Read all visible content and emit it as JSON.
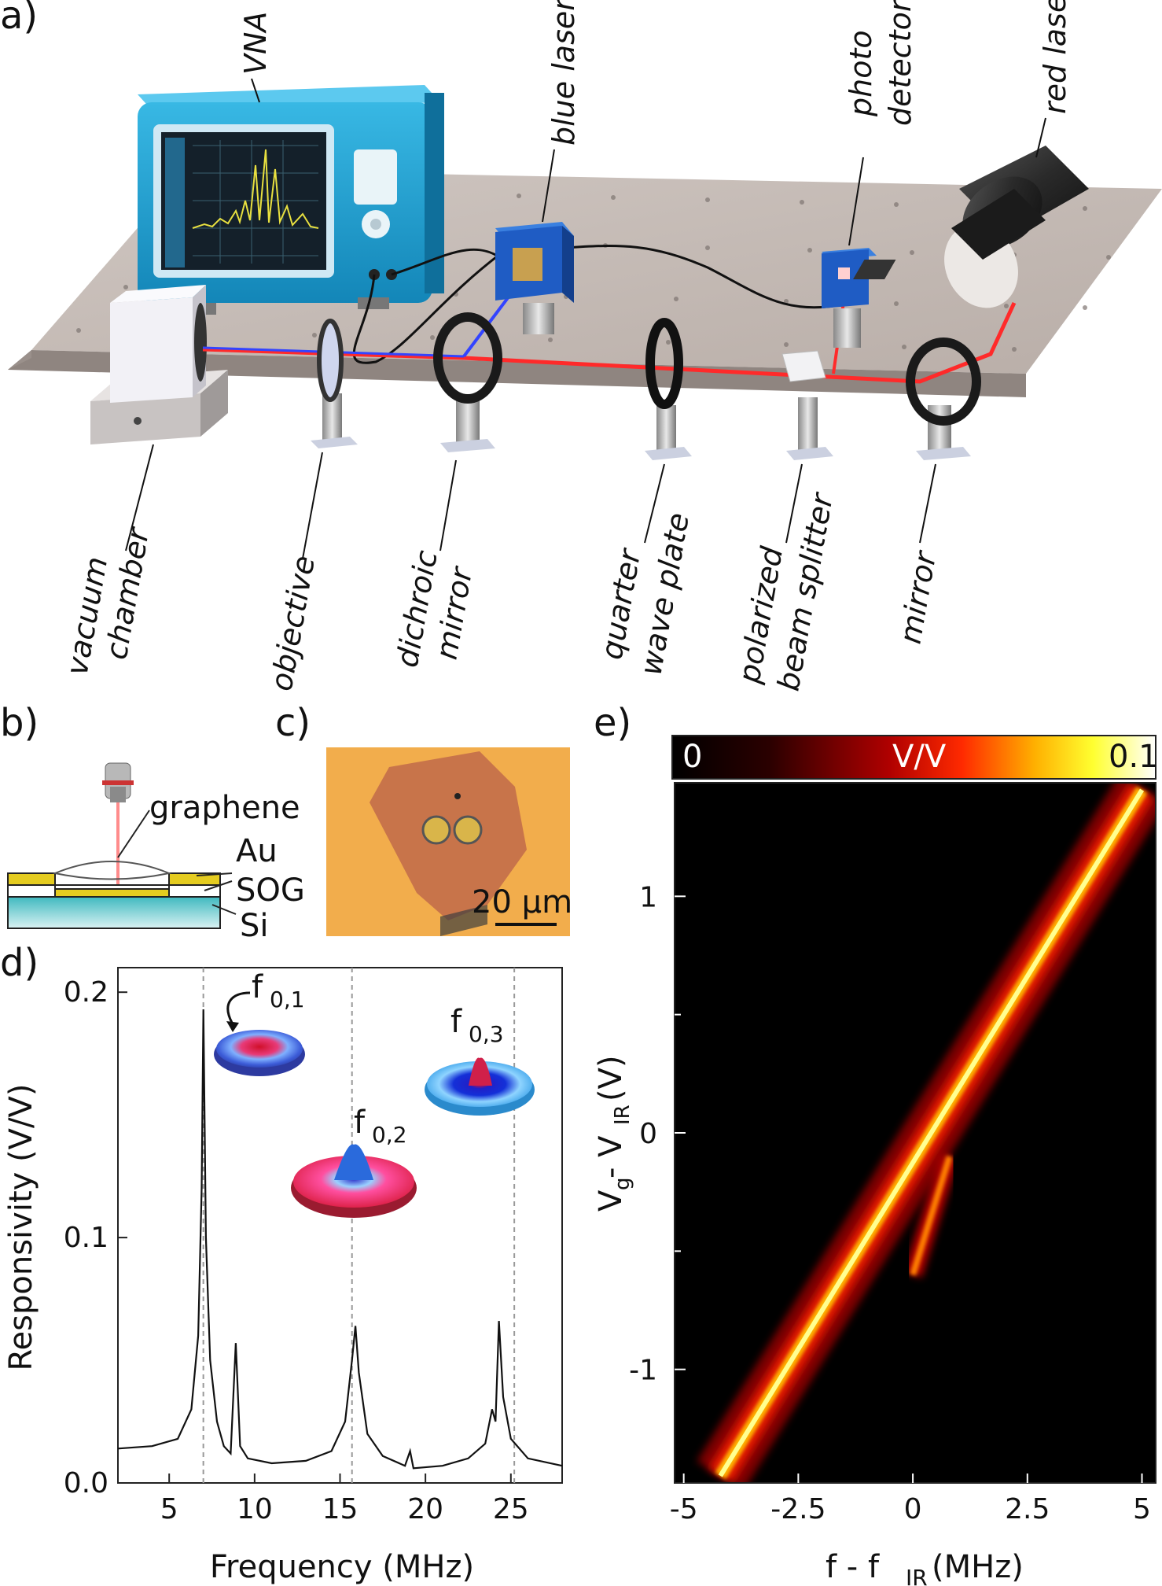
{
  "panels": {
    "a": "a)",
    "b": "b)",
    "c": "c)",
    "d": "d)",
    "e": "e)"
  },
  "setup_labels": {
    "vna": "VNA",
    "blue_laser": "blue laser",
    "photo": "photo",
    "detector": "detector",
    "red_laser": "red laser",
    "vacuum": "vacuum",
    "chamber": "chamber",
    "objective": "objective",
    "dichroic": "dichroic",
    "mirror_a": "mirror",
    "quarter": "quarter",
    "wave_plate": "wave plate",
    "polarized": "polarized",
    "beam_splitter": "beam splitter",
    "mirror": "mirror"
  },
  "device_labels": {
    "graphene": "graphene",
    "au": "Au",
    "sog": "SOG",
    "si": "Si"
  },
  "micrograph": {
    "scale_bar": "20 µm"
  },
  "colors": {
    "table": "#bdb3ad",
    "vna_body": "#1ba1cf",
    "red_beam": "#ff2a2a",
    "blue_beam": "#3344ff",
    "laser_box": "#1f5cc4",
    "flake_bg": "#f2ad4c",
    "flake": "#c8744a"
  },
  "chart_data": [
    {
      "type": "line",
      "id": "d",
      "xlabel": "Frequency (MHz)",
      "ylabel": "Responsivity (V/V)",
      "xlim": [
        2,
        28
      ],
      "ylim": [
        0,
        0.21
      ],
      "xticks": [
        5,
        10,
        15,
        20,
        25
      ],
      "yticks": [
        0.0,
        0.1,
        0.2
      ],
      "ytick_labels": [
        "0.0",
        "0.1",
        "0.2"
      ],
      "mode_lines": [
        7.0,
        15.7,
        25.2
      ],
      "background": [
        [
          2,
          0.014
        ],
        [
          4,
          0.015
        ],
        [
          5.5,
          0.018
        ],
        [
          6.3,
          0.03
        ],
        [
          6.7,
          0.06
        ],
        [
          6.9,
          0.12
        ],
        [
          7.0,
          0.193
        ],
        [
          7.15,
          0.1
        ],
        [
          7.4,
          0.05
        ],
        [
          7.8,
          0.025
        ],
        [
          8.2,
          0.015
        ],
        [
          8.6,
          0.012
        ],
        [
          8.9,
          0.057
        ],
        [
          9.15,
          0.015
        ],
        [
          9.6,
          0.01
        ],
        [
          11,
          0.008
        ],
        [
          13,
          0.009
        ],
        [
          14.5,
          0.013
        ],
        [
          15.3,
          0.025
        ],
        [
          15.7,
          0.05
        ],
        [
          15.9,
          0.064
        ],
        [
          16.1,
          0.045
        ],
        [
          16.6,
          0.02
        ],
        [
          17.5,
          0.011
        ],
        [
          18.8,
          0.007
        ],
        [
          19.1,
          0.013
        ],
        [
          19.3,
          0.006
        ],
        [
          21,
          0.007
        ],
        [
          22.5,
          0.01
        ],
        [
          23.5,
          0.016
        ],
        [
          23.9,
          0.03
        ],
        [
          24.1,
          0.025
        ],
        [
          24.3,
          0.066
        ],
        [
          24.55,
          0.035
        ],
        [
          25,
          0.018
        ],
        [
          26,
          0.01
        ],
        [
          28,
          0.007
        ]
      ],
      "mode_labels": [
        {
          "base": "f",
          "sub": "0,1"
        },
        {
          "base": "f",
          "sub": "0,2"
        },
        {
          "base": "f",
          "sub": "0,3"
        }
      ]
    },
    {
      "type": "heatmap",
      "id": "e",
      "xlabel": "f - f",
      "xlabel_sub": "IR",
      "xlabel_unit": " (MHz)",
      "ylabel": "V",
      "ylabel_parts": [
        "V",
        "g",
        " - V",
        "IR",
        " (V)"
      ],
      "xlim": [
        -5.2,
        5.3
      ],
      "ylim": [
        -1.48,
        1.48
      ],
      "xticks": [
        -5,
        -2.5,
        0,
        2.5,
        5
      ],
      "xtick_labels": [
        "-5",
        "-2.5",
        "0",
        "2.5",
        "5"
      ],
      "yticks": [
        -1,
        0,
        1
      ],
      "ytick_labels": [
        "-1",
        "0",
        "1"
      ],
      "colorbar": {
        "min_label": "0",
        "max_label": "0.1",
        "unit": "V/V"
      },
      "main_branch": {
        "from": [
          -4.2,
          -1.45
        ],
        "to": [
          5.0,
          1.45
        ]
      },
      "side_branch": {
        "from": [
          0.0,
          -0.6
        ],
        "to": [
          0.8,
          -0.1
        ]
      }
    }
  ]
}
